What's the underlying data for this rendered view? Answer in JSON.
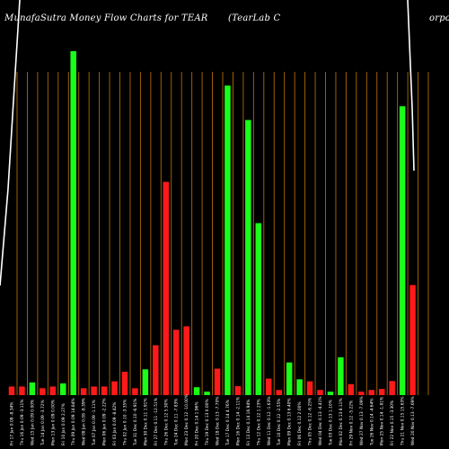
{
  "header": {
    "title_left": "MunafaSutra  Money Flow  Charts for TEAR",
    "title_right": "(TearLab C",
    "title_right_end": "orpor"
  },
  "colors": {
    "background": "#000000",
    "grid_line": "#b06a00",
    "bar_up": "#1aff1a",
    "bar_down": "#ff1a1a",
    "price_line": "#ffffff",
    "text": "#ffffff"
  },
  "chart_data": {
    "type": "bar",
    "title": "MunafaSutra  Money Flow  Charts for TEAR (TearLab C orpor",
    "categories": [
      "Fri 17 Jan 0.08 -8.34%",
      "Thu 16 Jan 0.09 -3.11%",
      "Wed 15 Jan 0.09 0.00%",
      "Tue 14 Jan 0.09 -3.72%",
      "Mon 13 Jan 0.09 0.00%",
      "Fri 10 Jan 0.09 2.27%",
      "Thu 09 Jan 0.09 14.84%",
      "Wed 08 Jan 0.08 -8.39%",
      "Tue 07 Jan 0.09 -1.11%",
      "Mon 06 Jan 0.09 -2.22%",
      "Fri 03 Jan 0.09 -8.42%",
      "Thu 02 Jan 0.10 -3.35%",
      "Tue 31 Dec 0.10 -6.91%",
      "Mon 30 Dec 0.11 1.91%",
      "Fri 27 Dec 0.11 -12.51%",
      "Thu 26 Dec 0.12 5.30%",
      "Tue 24 Dec 0.11 -7.83%",
      "Mon 23 Dec 0.12 -10.00%",
      "Fri 20 Dec 0.14 1.96%",
      "Thu 19 Dec 0.13 0.00%",
      "Wed 18 Dec 0.13 -7.70%",
      "Tue 17 Dec 0.14 4.76%",
      "Mon 16 Dec 0.14 -2.11%",
      "Fri 13 Dec 0.14 16.94%",
      "Thu 12 Dec 0.12 1.23%",
      "Wed 11 Dec 0.12 -1.63%",
      "Tue 10 Dec 0.12 -2.55%",
      "Mon 09 Dec 0.13 6.40%",
      "Fri 06 Dec 0.12 2.00%",
      "Thu 05 Dec 0.12 -6.25%",
      "Wed 04 Dec 0.13 -4.41%",
      "Tue 03 Dec 0.13 1.10%",
      "Mon 02 Dec 0.13 8.11%",
      "Fri 29 Nov 0.12 -5.22%",
      "Wed 27 Nov 0.13 -7.09%",
      "Tue 26 Nov 0.14 -4.64%",
      "Mon 25 Nov 0.14 -1.81%",
      "Fri 22 Nov 0.15 -3.30%",
      "Thu 21 Nov 0.15 15.63%",
      "Wed 20 Nov 0.13 -7.69%"
    ],
    "values": [
      2.5,
      2.5,
      3.7,
      2.0,
      2.5,
      3.4,
      100,
      2.0,
      2.5,
      2.5,
      4.0,
      6.8,
      2.0,
      7.5,
      14.5,
      62,
      19,
      20,
      2.3,
      1.0,
      7.7,
      90,
      2.6,
      80,
      50,
      4.8,
      1.5,
      9.5,
      4.6,
      4.0,
      1.5,
      1.0,
      11.0,
      3.2,
      1.0,
      1.5,
      1.8,
      4.1,
      84,
      32
    ],
    "directions": [
      "down",
      "down",
      "up",
      "down",
      "down",
      "up",
      "up",
      "down",
      "down",
      "down",
      "down",
      "down",
      "down",
      "up",
      "down",
      "down",
      "down",
      "down",
      "up",
      "up",
      "down",
      "up",
      "down",
      "up",
      "up",
      "down",
      "down",
      "up",
      "up",
      "down",
      "down",
      "up",
      "up",
      "down",
      "down",
      "down",
      "down",
      "down",
      "up",
      "down"
    ],
    "price_line_shown": true,
    "grid": true,
    "ylim": [
      0,
      100
    ]
  }
}
